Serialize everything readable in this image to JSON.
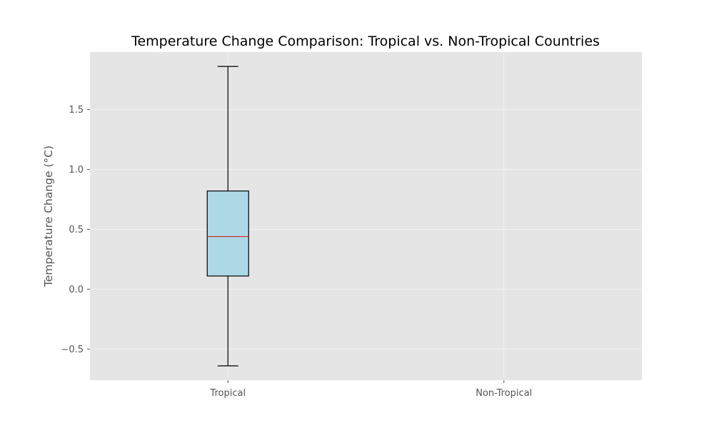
{
  "chart_data": {
    "type": "box",
    "title": "Temperature Change Comparison: Tropical vs. Non-Tropical Countries",
    "xlabel": "",
    "ylabel": "Temperature Change (°C)",
    "categories": [
      "Tropical",
      "Non-Tropical"
    ],
    "yticks": [
      -0.5,
      0.0,
      0.5,
      1.0,
      1.5
    ],
    "ytick_labels": [
      "−0.5",
      "0.0",
      "0.5",
      "1.0",
      "1.5"
    ],
    "ylim": [
      -0.76,
      1.98
    ],
    "grid": true,
    "legend": "none",
    "boxes": [
      {
        "category": "Tropical",
        "whisker_low": -0.64,
        "q1": 0.11,
        "median": 0.44,
        "q3": 0.82,
        "whisker_high": 1.86
      },
      {
        "category": "Non-Tropical"
      }
    ],
    "colors": {
      "axes_background": "#e5e5e5",
      "grid": "#f2f2f2",
      "box_fill": "#add8e6",
      "box_edge": "#000000",
      "median": "#d62728",
      "whisker": "#000000"
    }
  }
}
